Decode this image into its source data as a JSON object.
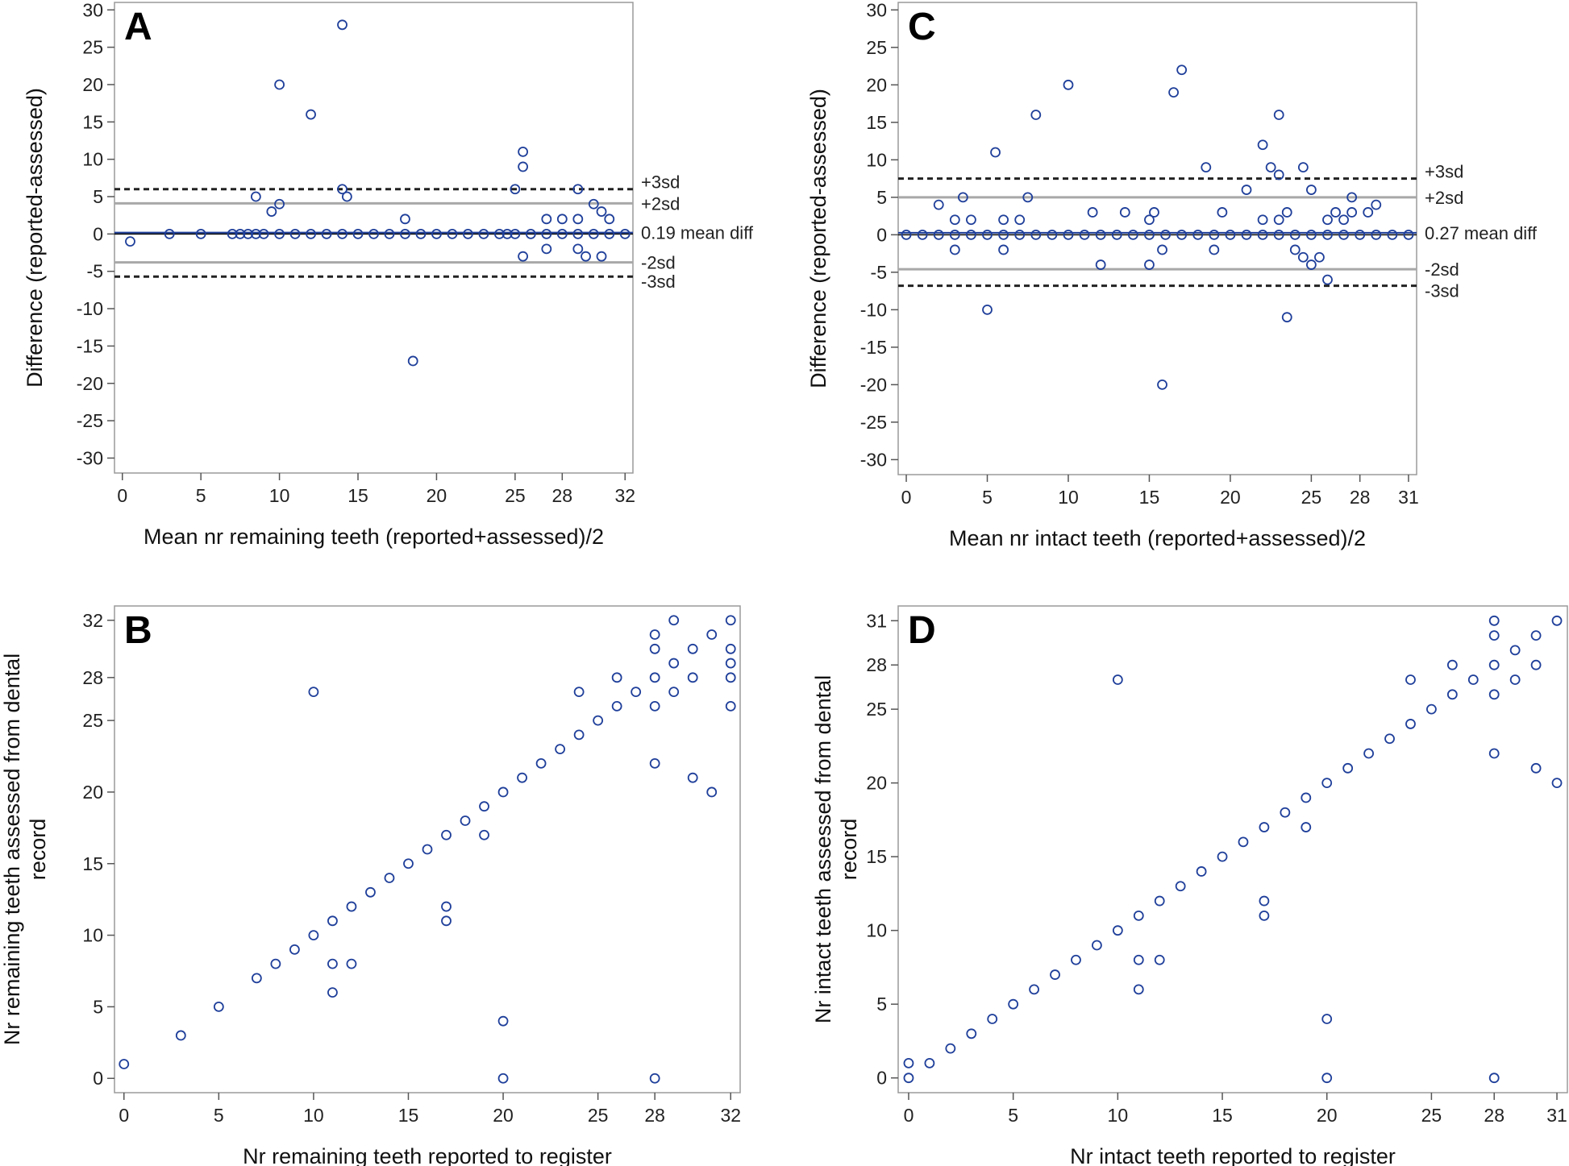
{
  "colors": {
    "point": "#1f3f9a",
    "frame": "#9a9a9a",
    "sd2_line": "#a8a8a8",
    "sd3_line": "#222222"
  },
  "chart_data": [
    {
      "id": "A",
      "type": "scatter",
      "panel_label": "A",
      "xlabel": "Mean nr remaining teeth (reported+assessed)/2",
      "ylabel": "Difference (reported-assessed)",
      "xlim": [
        -0.5,
        32.5
      ],
      "ylim": [
        -32,
        31
      ],
      "xticks": [
        0,
        5,
        10,
        15,
        20,
        25,
        28,
        32
      ],
      "yticks": [
        30,
        25,
        20,
        15,
        10,
        5,
        0,
        -5,
        -10,
        -15,
        -20,
        -25,
        -30
      ],
      "grid": false,
      "reference_lines": [
        {
          "y": 6,
          "style": "sd3",
          "label": "+3sd"
        },
        {
          "y": 4.1,
          "style": "sd2",
          "label": "+2sd"
        },
        {
          "y": 0.19,
          "style": "mean",
          "label": "0.19 mean diff"
        },
        {
          "y": -3.8,
          "style": "sd2",
          "label": "-2sd"
        },
        {
          "y": -5.7,
          "style": "sd3",
          "label": "-3sd"
        }
      ],
      "points": [
        [
          0.5,
          -1
        ],
        [
          3,
          0
        ],
        [
          5,
          0
        ],
        [
          7,
          0
        ],
        [
          7.5,
          0
        ],
        [
          8,
          0
        ],
        [
          8.5,
          0
        ],
        [
          8.5,
          5
        ],
        [
          9,
          0
        ],
        [
          9.5,
          3
        ],
        [
          10,
          0
        ],
        [
          10,
          4
        ],
        [
          10,
          20
        ],
        [
          11,
          0
        ],
        [
          12,
          0
        ],
        [
          12,
          16
        ],
        [
          13,
          0
        ],
        [
          14,
          0
        ],
        [
          14,
          6
        ],
        [
          14,
          28
        ],
        [
          14.3,
          5
        ],
        [
          15,
          0
        ],
        [
          16,
          0
        ],
        [
          17,
          0
        ],
        [
          18,
          0
        ],
        [
          18,
          2
        ],
        [
          18.5,
          -17
        ],
        [
          19,
          0
        ],
        [
          20,
          0
        ],
        [
          21,
          0
        ],
        [
          22,
          0
        ],
        [
          23,
          0
        ],
        [
          24,
          0
        ],
        [
          24.5,
          0
        ],
        [
          25,
          0
        ],
        [
          25,
          6
        ],
        [
          25.5,
          9
        ],
        [
          25.5,
          11
        ],
        [
          25.5,
          -3
        ],
        [
          26,
          0
        ],
        [
          27,
          0
        ],
        [
          27,
          2
        ],
        [
          27,
          -2
        ],
        [
          28,
          0
        ],
        [
          28,
          2
        ],
        [
          29,
          0
        ],
        [
          29,
          2
        ],
        [
          29,
          6
        ],
        [
          29,
          -2
        ],
        [
          29.5,
          -3
        ],
        [
          30,
          0
        ],
        [
          30,
          4
        ],
        [
          30.5,
          3
        ],
        [
          30.5,
          -3
        ],
        [
          31,
          0
        ],
        [
          31,
          2
        ],
        [
          32,
          0
        ]
      ]
    },
    {
      "id": "C",
      "type": "scatter",
      "panel_label": "C",
      "xlabel": "Mean nr intact teeth (reported+assessed)/2",
      "ylabel": "Difference (reported-assessed)",
      "xlim": [
        -0.5,
        31.5
      ],
      "ylim": [
        -32,
        31
      ],
      "xticks": [
        0,
        5,
        10,
        15,
        20,
        25,
        28,
        31
      ],
      "yticks": [
        30,
        25,
        20,
        15,
        10,
        5,
        0,
        -5,
        -10,
        -15,
        -20,
        -25,
        -30
      ],
      "grid": false,
      "reference_lines": [
        {
          "y": 7.5,
          "style": "sd3",
          "label": "+3sd"
        },
        {
          "y": 5,
          "style": "sd2",
          "label": "+2sd"
        },
        {
          "y": 0.27,
          "style": "mean",
          "label": "0.27 mean diff"
        },
        {
          "y": -4.6,
          "style": "sd2",
          "label": "-2sd"
        },
        {
          "y": -6.8,
          "style": "sd3",
          "label": "-3sd"
        }
      ],
      "points": [
        [
          0,
          0
        ],
        [
          1,
          0
        ],
        [
          2,
          0
        ],
        [
          2,
          4
        ],
        [
          3,
          0
        ],
        [
          3,
          2
        ],
        [
          3,
          -2
        ],
        [
          3.5,
          5
        ],
        [
          4,
          0
        ],
        [
          4,
          2
        ],
        [
          5,
          0
        ],
        [
          5,
          -10
        ],
        [
          5.5,
          11
        ],
        [
          6,
          0
        ],
        [
          6,
          2
        ],
        [
          6,
          -2
        ],
        [
          7,
          0
        ],
        [
          7,
          2
        ],
        [
          7.5,
          5
        ],
        [
          8,
          0
        ],
        [
          8,
          16
        ],
        [
          9,
          0
        ],
        [
          10,
          0
        ],
        [
          10,
          20
        ],
        [
          11,
          0
        ],
        [
          11.5,
          3
        ],
        [
          12,
          0
        ],
        [
          12,
          -4
        ],
        [
          13,
          0
        ],
        [
          13.5,
          3
        ],
        [
          14,
          0
        ],
        [
          15,
          0
        ],
        [
          15,
          2
        ],
        [
          15,
          -4
        ],
        [
          15.3,
          3
        ],
        [
          15.8,
          -2
        ],
        [
          15.8,
          -20
        ],
        [
          16,
          0
        ],
        [
          16.5,
          19
        ],
        [
          17,
          0
        ],
        [
          17,
          22
        ],
        [
          18,
          0
        ],
        [
          18.5,
          9
        ],
        [
          19,
          0
        ],
        [
          19,
          -2
        ],
        [
          19.5,
          3
        ],
        [
          20,
          0
        ],
        [
          21,
          0
        ],
        [
          21,
          6
        ],
        [
          22,
          0
        ],
        [
          22,
          2
        ],
        [
          22,
          12
        ],
        [
          22.5,
          9
        ],
        [
          23,
          0
        ],
        [
          23,
          2
        ],
        [
          23,
          8
        ],
        [
          23,
          16
        ],
        [
          23.5,
          3
        ],
        [
          23.5,
          -11
        ],
        [
          24,
          0
        ],
        [
          24,
          -2
        ],
        [
          24.5,
          9
        ],
        [
          24.5,
          -3
        ],
        [
          25,
          0
        ],
        [
          25,
          6
        ],
        [
          25,
          -4
        ],
        [
          25.5,
          -3
        ],
        [
          26,
          0
        ],
        [
          26,
          2
        ],
        [
          26,
          -6
        ],
        [
          26.5,
          3
        ],
        [
          27,
          0
        ],
        [
          27,
          2
        ],
        [
          27.5,
          3
        ],
        [
          27.5,
          5
        ],
        [
          28,
          0
        ],
        [
          28.5,
          3
        ],
        [
          29,
          0
        ],
        [
          29,
          4
        ],
        [
          30,
          0
        ],
        [
          31,
          0
        ]
      ]
    },
    {
      "id": "B",
      "type": "scatter",
      "panel_label": "B",
      "xlabel": "Nr remaining teeth reported to register",
      "ylabel": "Nr remaining teeth assessed from dental record",
      "xlim": [
        -0.5,
        32.5
      ],
      "ylim": [
        -1,
        33
      ],
      "xticks": [
        0,
        5,
        10,
        15,
        20,
        25,
        28,
        32
      ],
      "yticks": [
        32,
        28,
        25,
        20,
        15,
        10,
        5,
        0
      ],
      "grid": false,
      "points": [
        [
          0,
          1
        ],
        [
          3,
          3
        ],
        [
          5,
          5
        ],
        [
          7,
          7
        ],
        [
          8,
          8
        ],
        [
          9,
          9
        ],
        [
          10,
          10
        ],
        [
          10,
          27
        ],
        [
          11,
          11
        ],
        [
          11,
          8
        ],
        [
          11,
          6
        ],
        [
          12,
          12
        ],
        [
          12,
          8
        ],
        [
          13,
          13
        ],
        [
          14,
          14
        ],
        [
          15,
          15
        ],
        [
          16,
          16
        ],
        [
          17,
          17
        ],
        [
          17,
          12
        ],
        [
          17,
          11
        ],
        [
          18,
          18
        ],
        [
          19,
          19
        ],
        [
          19,
          17
        ],
        [
          20,
          20
        ],
        [
          20,
          4
        ],
        [
          20,
          0
        ],
        [
          21,
          21
        ],
        [
          22,
          22
        ],
        [
          23,
          23
        ],
        [
          24,
          24
        ],
        [
          24,
          27
        ],
        [
          25,
          25
        ],
        [
          26,
          26
        ],
        [
          26,
          28
        ],
        [
          27,
          27
        ],
        [
          28,
          28
        ],
        [
          28,
          30
        ],
        [
          28,
          31
        ],
        [
          28,
          26
        ],
        [
          28,
          22
        ],
        [
          28,
          0
        ],
        [
          29,
          29
        ],
        [
          29,
          32
        ],
        [
          29,
          27
        ],
        [
          30,
          30
        ],
        [
          30,
          28
        ],
        [
          30,
          21
        ],
        [
          31,
          31
        ],
        [
          31,
          20
        ],
        [
          32,
          32
        ],
        [
          32,
          30
        ],
        [
          32,
          29
        ],
        [
          32,
          28
        ],
        [
          32,
          26
        ]
      ]
    },
    {
      "id": "D",
      "type": "scatter",
      "panel_label": "D",
      "xlabel": "Nr intact teeth reported to register",
      "ylabel": "Nr intact teeth assessed from dental record",
      "xlim": [
        -0.5,
        31.5
      ],
      "ylim": [
        -1,
        32
      ],
      "xticks": [
        0,
        5,
        10,
        15,
        20,
        25,
        28,
        31
      ],
      "yticks": [
        31,
        28,
        25,
        20,
        15,
        10,
        5,
        0
      ],
      "grid": false,
      "points": [
        [
          0,
          1
        ],
        [
          0,
          0
        ],
        [
          1,
          1
        ],
        [
          2,
          2
        ],
        [
          3,
          3
        ],
        [
          4,
          4
        ],
        [
          5,
          5
        ],
        [
          6,
          6
        ],
        [
          7,
          7
        ],
        [
          8,
          8
        ],
        [
          9,
          9
        ],
        [
          10,
          10
        ],
        [
          10,
          27
        ],
        [
          11,
          11
        ],
        [
          11,
          8
        ],
        [
          11,
          6
        ],
        [
          12,
          12
        ],
        [
          12,
          8
        ],
        [
          13,
          13
        ],
        [
          14,
          14
        ],
        [
          15,
          15
        ],
        [
          16,
          16
        ],
        [
          17,
          17
        ],
        [
          17,
          12
        ],
        [
          17,
          11
        ],
        [
          18,
          18
        ],
        [
          19,
          19
        ],
        [
          19,
          17
        ],
        [
          20,
          20
        ],
        [
          20,
          4
        ],
        [
          20,
          0
        ],
        [
          21,
          21
        ],
        [
          22,
          22
        ],
        [
          23,
          23
        ],
        [
          24,
          24
        ],
        [
          24,
          27
        ],
        [
          25,
          25
        ],
        [
          26,
          26
        ],
        [
          26,
          28
        ],
        [
          27,
          27
        ],
        [
          28,
          28
        ],
        [
          28,
          31
        ],
        [
          28,
          30
        ],
        [
          28,
          26
        ],
        [
          28,
          22
        ],
        [
          28,
          0
        ],
        [
          29,
          29
        ],
        [
          29,
          27
        ],
        [
          30,
          30
        ],
        [
          30,
          28
        ],
        [
          30,
          21
        ],
        [
          31,
          31
        ],
        [
          31,
          20
        ]
      ]
    }
  ]
}
